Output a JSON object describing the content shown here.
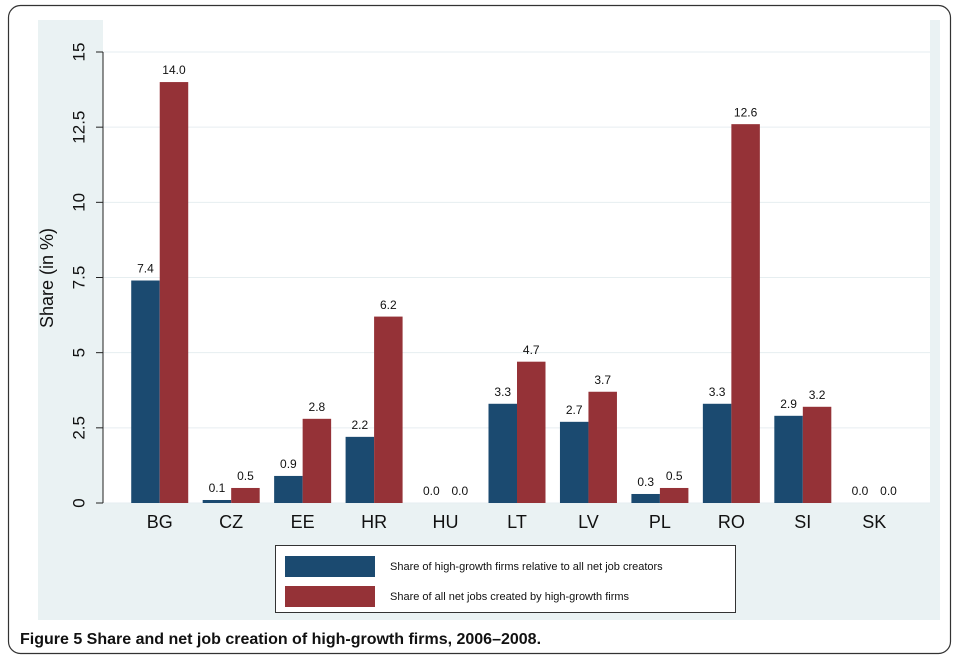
{
  "chart_data": {
    "type": "bar",
    "caption": "Figure 5 Share and net job creation of high-growth firms, 2006–2008.",
    "y_label": "Share (in %)",
    "categories": [
      "BG",
      "CZ",
      "EE",
      "HR",
      "HU",
      "LT",
      "LV",
      "PL",
      "RO",
      "SI",
      "SK"
    ],
    "series": [
      {
        "name": "Share of high-growth firms relative to all net job creators",
        "color": "#1b4a70",
        "values": [
          7.4,
          0.1,
          0.9,
          2.2,
          0,
          3.3,
          2.7,
          0.3,
          3.3,
          2.9,
          0
        ],
        "value_labels": [
          "7.4",
          "0.1",
          "0.9",
          "2.2",
          "0.0",
          "3.3",
          "2.7",
          "0.3",
          "3.3",
          "2.9",
          "0.0"
        ]
      },
      {
        "name": "Share of all net jobs created  by high-growth firms",
        "color": "#953237",
        "values": [
          14,
          0.5,
          2.8,
          6.2,
          0,
          4.7,
          3.7,
          0.5,
          12.6,
          3.2,
          0
        ],
        "value_labels": [
          "14.0",
          "0.5",
          "2.8",
          "6.2",
          "0.0",
          "4.7",
          "3.7",
          "0.5",
          "12.6",
          "3.2",
          "0.0"
        ]
      }
    ],
    "ylim": [
      0,
      15
    ],
    "yticks": [
      0,
      2.5,
      5,
      7.5,
      10,
      12.5,
      15
    ],
    "grid": true
  }
}
